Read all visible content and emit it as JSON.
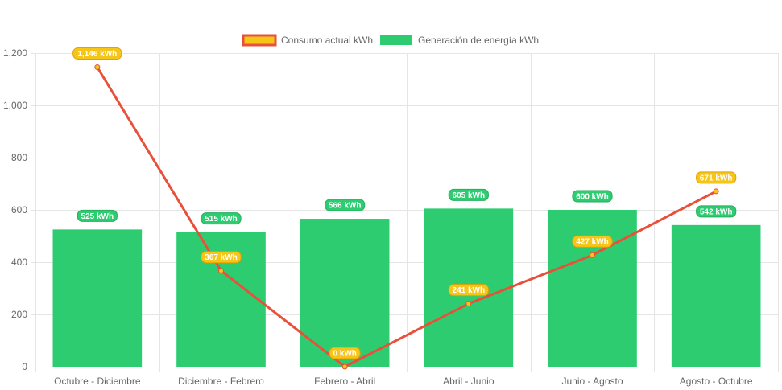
{
  "chart_data": {
    "type": "bar",
    "categories": [
      "Octubre - Diciembre",
      "Diciembre - Febrero",
      "Febrero - Abril",
      "Abril - Junio",
      "Junio - Agosto",
      "Agosto - Octubre"
    ],
    "series": [
      {
        "name": "Consumo actual kWh",
        "type": "line",
        "values": [
          1146,
          367,
          0,
          241,
          427,
          671
        ],
        "labels": [
          "1,146 kWh",
          "367 kWh",
          "0 kWh",
          "241 kWh",
          "427 kWh",
          "671 kWh"
        ],
        "line_color": "#e8503a",
        "fill_color": "#f5c518"
      },
      {
        "name": "Generación de energía kWh",
        "type": "bar",
        "values": [
          525,
          515,
          566,
          605,
          600,
          542
        ],
        "labels": [
          "525 kWh",
          "515 kWh",
          "566 kWh",
          "605 kWh",
          "600 kWh",
          "542 kWh"
        ],
        "color": "#2ecc71"
      }
    ],
    "ylim": [
      0,
      1200
    ],
    "yticks": [
      0,
      200,
      400,
      600,
      800,
      1000,
      1200
    ],
    "ytick_labels": [
      "0",
      "200",
      "400",
      "600",
      "800",
      "1,000",
      "1,200"
    ],
    "grid": true,
    "legend_position": "top-center"
  }
}
